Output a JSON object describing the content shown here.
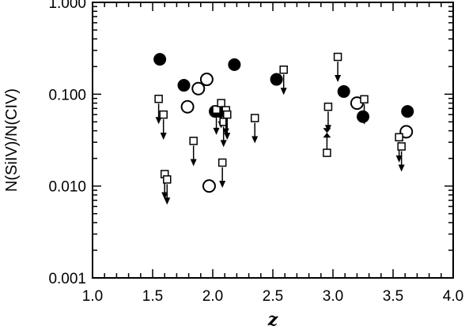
{
  "chart_data": {
    "type": "scatter",
    "title": "",
    "xlabel": "z",
    "ylabel": "N(SiIV)/N(CIV)",
    "xlim": [
      1.0,
      4.0
    ],
    "ylim": [
      0.001,
      1.0
    ],
    "y_scale": "log",
    "grid": false,
    "legend": "none",
    "x_ticks": [
      1.0,
      1.5,
      2.0,
      2.5,
      3.0,
      3.5,
      4.0
    ],
    "x_tick_labels": [
      "1.0",
      "1.5",
      "2.0",
      "2.5",
      "3.0",
      "3.5",
      "4.0"
    ],
    "y_ticks": [
      0.001,
      0.01,
      0.1,
      1.0
    ],
    "y_tick_labels": [
      "0.001",
      "0.010",
      "0.100",
      "1.000"
    ],
    "series": [
      {
        "marker": "filled-circle",
        "points": [
          {
            "x": 1.56,
            "y": 0.24
          },
          {
            "x": 1.76,
            "y": 0.125
          },
          {
            "x": 2.02,
            "y": 0.065
          },
          {
            "x": 2.06,
            "y": 0.065
          },
          {
            "x": 2.18,
            "y": 0.21
          },
          {
            "x": 2.53,
            "y": 0.145
          },
          {
            "x": 3.09,
            "y": 0.107
          },
          {
            "x": 3.25,
            "y": 0.057
          },
          {
            "x": 3.62,
            "y": 0.065
          }
        ]
      },
      {
        "marker": "open-circle",
        "points": [
          {
            "x": 1.79,
            "y": 0.073
          },
          {
            "x": 1.88,
            "y": 0.115
          },
          {
            "x": 1.95,
            "y": 0.145
          },
          {
            "x": 1.97,
            "y": 0.01
          },
          {
            "x": 3.2,
            "y": 0.08
          },
          {
            "x": 3.61,
            "y": 0.039
          }
        ]
      },
      {
        "marker": "open-square-upper-limit",
        "points": [
          {
            "x": 1.55,
            "y": 0.089
          },
          {
            "x": 1.59,
            "y": 0.06
          },
          {
            "x": 1.6,
            "y": 0.0135
          },
          {
            "x": 1.62,
            "y": 0.0118
          },
          {
            "x": 1.84,
            "y": 0.031
          },
          {
            "x": 2.03,
            "y": 0.068
          },
          {
            "x": 2.07,
            "y": 0.08
          },
          {
            "x": 2.08,
            "y": 0.018
          },
          {
            "x": 2.09,
            "y": 0.05
          },
          {
            "x": 2.11,
            "y": 0.067
          },
          {
            "x": 2.12,
            "y": 0.06
          },
          {
            "x": 2.35,
            "y": 0.055
          },
          {
            "x": 2.59,
            "y": 0.185
          },
          {
            "x": 2.96,
            "y": 0.073
          },
          {
            "x": 3.04,
            "y": 0.255
          },
          {
            "x": 3.26,
            "y": 0.088
          },
          {
            "x": 3.55,
            "y": 0.034
          },
          {
            "x": 3.57,
            "y": 0.027
          }
        ]
      },
      {
        "marker": "open-square",
        "points": [
          {
            "x": 2.95,
            "y": 0.023
          }
        ]
      },
      {
        "marker": "bowtie",
        "points": [
          {
            "x": 2.95,
            "y": 0.038
          }
        ]
      }
    ]
  }
}
